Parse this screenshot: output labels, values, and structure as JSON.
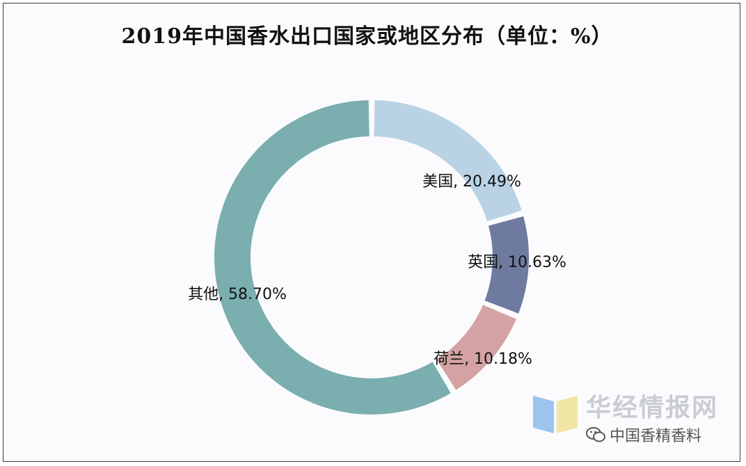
{
  "title": "2019年中国香水出口国家或地区分布（单位：%）",
  "chart_data": {
    "type": "pie",
    "variant": "donut",
    "title": "2019年中国香水出口国家或地区分布（单位：%）",
    "unit": "%",
    "legend": "none",
    "slices": [
      {
        "name": "美国",
        "value": 20.49,
        "label": "美国, 20.49%",
        "color": "#b9d3e4"
      },
      {
        "name": "英国",
        "value": 10.63,
        "label": "英国, 10.63%",
        "color": "#6e7aa0"
      },
      {
        "name": "荷兰",
        "value": 10.18,
        "label": "荷兰, 10.18%",
        "color": "#d4a2a2"
      },
      {
        "name": "其他",
        "value": 58.7,
        "label": "其他, 58.70%",
        "color": "#7aaeaf"
      }
    ]
  },
  "watermark": {
    "site": "华经情报网",
    "wechat_label": "中国香精香料",
    "icon": "wechat-icon",
    "logo_colors": [
      "#9dc3ee",
      "#f2e6a3"
    ]
  }
}
